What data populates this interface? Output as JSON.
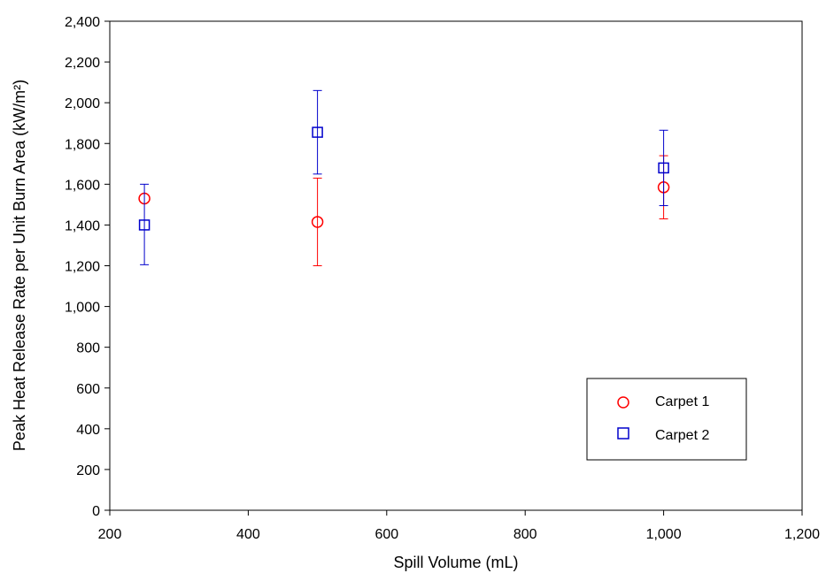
{
  "chart_data": {
    "type": "scatter",
    "xlabel": "Spill Volume (mL)",
    "ylabel": "Peak Heat Release Rate per Unit Burn Area (kW/m²)",
    "xlim": [
      200,
      1200
    ],
    "ylim": [
      0,
      2400
    ],
    "x_ticks": [
      200,
      400,
      600,
      800,
      1000,
      1200
    ],
    "x_tick_labels": [
      "200",
      "400",
      "600",
      "800",
      "1,000",
      "1,200"
    ],
    "y_ticks": [
      0,
      200,
      400,
      600,
      800,
      1000,
      1200,
      1400,
      1600,
      1800,
      2000,
      2200,
      2400
    ],
    "y_tick_labels": [
      "0",
      "200",
      "400",
      "600",
      "800",
      "1,000",
      "1,200",
      "1,400",
      "1,600",
      "1,800",
      "2,000",
      "2,200",
      "2,400"
    ],
    "grid": false,
    "legend_position": "bottom-right",
    "error_bars": true,
    "series": [
      {
        "name": "Carpet 1",
        "marker": "circle",
        "color": "#ff0000",
        "points": [
          {
            "x": 250,
            "y": 1530,
            "err_low": 1530,
            "err_high": 1530
          },
          {
            "x": 500,
            "y": 1415,
            "err_low": 1200,
            "err_high": 1630
          },
          {
            "x": 1000,
            "y": 1585,
            "err_low": 1430,
            "err_high": 1740
          }
        ]
      },
      {
        "name": "Carpet 2",
        "marker": "square",
        "color": "#0000cc",
        "points": [
          {
            "x": 250,
            "y": 1400,
            "err_low": 1205,
            "err_high": 1600
          },
          {
            "x": 500,
            "y": 1855,
            "err_low": 1650,
            "err_high": 2060
          },
          {
            "x": 1000,
            "y": 1680,
            "err_low": 1495,
            "err_high": 1865
          }
        ]
      }
    ]
  }
}
